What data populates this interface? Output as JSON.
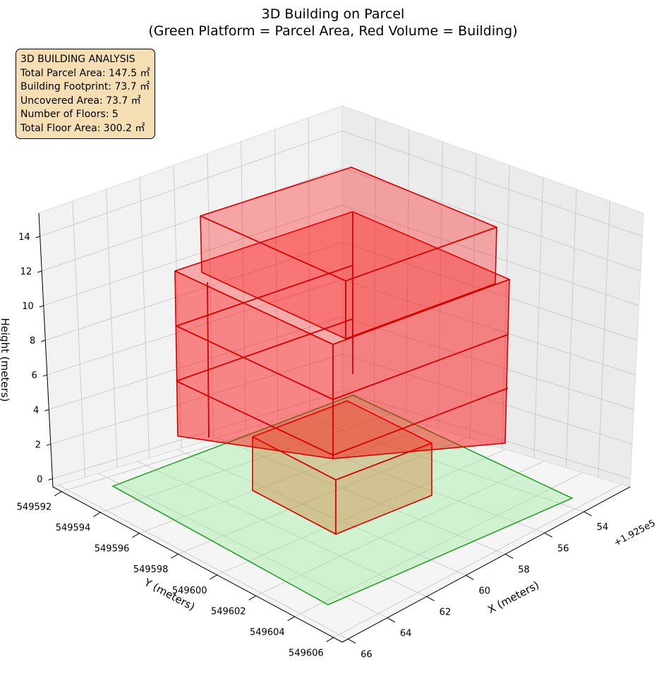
{
  "chart_data": {
    "type": "3d-polygon",
    "title_line1": "3D Building on Parcel",
    "title_line2": "(Green Platform = Parcel Area, Red Volume = Building)",
    "xlabel": "X (meters)",
    "ylabel": "Y (meters)",
    "zlabel": "Height (meters)",
    "x_ticks": [
      "54",
      "56",
      "58",
      "60",
      "62",
      "64",
      "66"
    ],
    "x_offset_label": "+1.925e5",
    "y_ticks": [
      "549592",
      "549594",
      "549596",
      "549598",
      "549600",
      "549602",
      "549604",
      "549606"
    ],
    "z_ticks": [
      "0",
      "2",
      "4",
      "6",
      "8",
      "10",
      "12",
      "14"
    ],
    "grid": true,
    "colors": {
      "parcel_fill": "#90ee90",
      "parcel_edge": "#2ca02c",
      "building_fill": "#ff0000",
      "building_edge": "#d40000"
    },
    "annotation": {
      "heading": "3D BUILDING ANALYSIS",
      "lines": [
        "Total Parcel Area: 147.5 ㎡",
        "Building Footprint: 73.7 ㎡",
        "Uncovered Area: 73.7 ㎡",
        "Number of Floors: 5",
        "Total Floor Area: 300.2 ㎡"
      ]
    }
  }
}
